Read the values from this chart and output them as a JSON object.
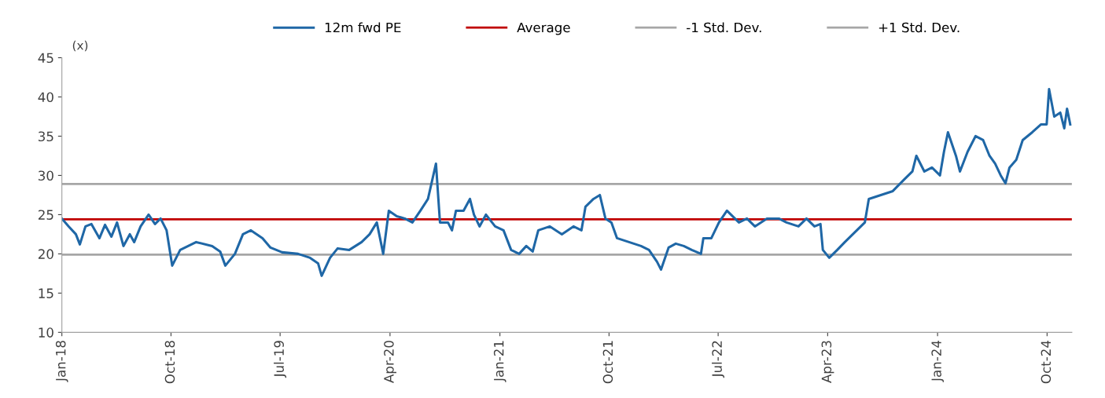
{
  "chart_data": {
    "type": "line",
    "ylabel": "(x)",
    "legend": "top",
    "grid": false,
    "marker": "none",
    "line_style": "solid",
    "xlim": [
      "2018-01-01",
      "2024-12-02"
    ],
    "xticks": [
      {
        "value": "2018-01-01",
        "label": "Jan-18"
      },
      {
        "value": "2018-10-01",
        "label": "Oct-18"
      },
      {
        "value": "2019-07-01",
        "label": "Jul-19"
      },
      {
        "value": "2020-04-01",
        "label": "Apr-20"
      },
      {
        "value": "2021-01-01",
        "label": "Jan-21"
      },
      {
        "value": "2021-10-01",
        "label": "Oct-21"
      },
      {
        "value": "2022-07-01",
        "label": "Jul-22"
      },
      {
        "value": "2023-04-01",
        "label": "Apr-23"
      },
      {
        "value": "2024-01-01",
        "label": "Jan-24"
      },
      {
        "value": "2024-10-01",
        "label": "Oct-24"
      }
    ],
    "ylim": [
      10,
      45
    ],
    "yticks": [
      10,
      15,
      20,
      25,
      30,
      35,
      40,
      45
    ],
    "x": [
      "2018-01-01",
      "2018-01-18",
      "2018-02-05",
      "2018-02-15",
      "2018-03-01",
      "2018-03-16",
      "2018-04-05",
      "2018-04-19",
      "2018-05-05",
      "2018-05-19",
      "2018-06-04",
      "2018-06-20",
      "2018-07-01",
      "2018-07-17",
      "2018-08-06",
      "2018-08-22",
      "2018-09-05",
      "2018-09-20",
      "2018-10-04",
      "2018-10-24",
      "2018-12-03",
      "2019-01-12",
      "2019-02-01",
      "2019-02-14",
      "2019-03-10",
      "2019-03-30",
      "2019-04-19",
      "2019-05-18",
      "2019-06-07",
      "2019-07-06",
      "2019-08-15",
      "2019-09-14",
      "2019-10-04",
      "2019-10-13",
      "2019-11-03",
      "2019-11-22",
      "2019-12-21",
      "2020-01-21",
      "2020-02-10",
      "2020-02-28",
      "2020-03-15",
      "2020-03-29",
      "2020-04-18",
      "2020-05-08",
      "2020-05-27",
      "2020-06-16",
      "2020-07-05",
      "2020-07-25",
      "2020-08-04",
      "2020-08-24",
      "2020-09-03",
      "2020-09-13",
      "2020-10-02",
      "2020-10-18",
      "2020-10-28",
      "2020-11-11",
      "2020-11-27",
      "2020-12-20",
      "2021-01-10",
      "2021-01-29",
      "2021-02-18",
      "2021-03-08",
      "2021-03-24",
      "2021-04-07",
      "2021-05-06",
      "2021-06-05",
      "2021-07-04",
      "2021-07-24",
      "2021-08-03",
      "2021-08-23",
      "2021-09-08",
      "2021-09-22",
      "2021-10-07",
      "2021-10-21",
      "2021-11-20",
      "2021-12-20",
      "2022-01-09",
      "2022-01-29",
      "2022-02-08",
      "2022-02-27",
      "2022-03-17",
      "2022-04-06",
      "2022-04-26",
      "2022-05-19",
      "2022-05-25",
      "2022-06-14",
      "2022-07-03",
      "2022-07-23",
      "2022-08-22",
      "2022-09-11",
      "2022-10-01",
      "2022-10-31",
      "2022-11-30",
      "2022-12-19",
      "2023-01-18",
      "2023-02-07",
      "2023-02-27",
      "2023-03-14",
      "2023-03-20",
      "2023-04-05",
      "2023-04-25",
      "2023-05-14",
      "2023-06-13",
      "2023-07-03",
      "2023-07-13",
      "2023-08-12",
      "2023-09-11",
      "2023-10-10",
      "2023-10-30",
      "2023-11-09",
      "2023-11-29",
      "2023-12-18",
      "2024-01-07",
      "2024-01-17",
      "2024-01-27",
      "2024-02-16",
      "2024-02-26",
      "2024-03-16",
      "2024-04-05",
      "2024-04-24",
      "2024-05-10",
      "2024-05-24",
      "2024-06-07",
      "2024-06-19",
      "2024-06-29",
      "2024-07-16",
      "2024-08-01",
      "2024-08-25",
      "2024-09-16",
      "2024-09-30",
      "2024-10-06",
      "2024-10-19",
      "2024-11-03",
      "2024-11-13",
      "2024-11-20",
      "2024-11-28"
    ],
    "series": [
      {
        "name": "12m fwd PE",
        "color": "#1f67a6",
        "values": [
          24.5,
          23.5,
          22.5,
          21.2,
          23.5,
          23.8,
          22.0,
          23.7,
          22.2,
          24.0,
          21.0,
          22.5,
          21.5,
          23.5,
          25.0,
          23.8,
          24.5,
          23.0,
          18.5,
          20.5,
          21.5,
          21.0,
          20.3,
          18.5,
          20.0,
          22.5,
          23.0,
          22.0,
          20.8,
          20.2,
          20.0,
          19.5,
          18.8,
          17.2,
          19.5,
          20.7,
          20.5,
          21.5,
          22.5,
          24.0,
          20.0,
          25.5,
          24.8,
          24.5,
          24.0,
          25.5,
          27.0,
          31.5,
          24.0,
          24.0,
          23.0,
          25.5,
          25.5,
          27.0,
          25.0,
          23.5,
          25.0,
          23.5,
          23.0,
          20.5,
          20.0,
          21.0,
          20.3,
          23.0,
          23.5,
          22.5,
          23.5,
          23.0,
          26.0,
          27.0,
          27.5,
          24.5,
          24.0,
          22.0,
          21.5,
          21.0,
          20.5,
          19.0,
          18.0,
          20.8,
          21.3,
          21.0,
          20.5,
          20.0,
          22.0,
          22.0,
          24.0,
          25.5,
          24.0,
          24.5,
          23.5,
          24.5,
          24.5,
          24.0,
          23.5,
          24.5,
          23.5,
          23.8,
          20.5,
          19.5,
          20.5,
          21.5,
          23.0,
          24.0,
          27.0,
          27.5,
          28.0,
          29.5,
          30.5,
          32.5,
          30.5,
          31.0,
          30.0,
          33.0,
          35.5,
          32.5,
          30.5,
          33.0,
          35.0,
          34.5,
          32.5,
          31.5,
          30.0,
          29.0,
          31.0,
          32.0,
          34.5,
          35.5,
          36.5,
          36.5,
          41.0,
          37.5,
          38.0,
          36.0,
          38.5,
          36.5
        ]
      }
    ],
    "ref_lines": [
      {
        "axis": "y",
        "value": 24.4,
        "label": "Average",
        "color": "#c00000",
        "line_style": "solid"
      },
      {
        "axis": "y",
        "value": 19.9,
        "label": "-1 Std. Dev.",
        "color": "#a6a6a6",
        "line_style": "solid"
      },
      {
        "axis": "y",
        "value": 28.9,
        "label": "+1 Std. Dev.",
        "color": "#a6a6a6",
        "line_style": "solid"
      }
    ]
  }
}
